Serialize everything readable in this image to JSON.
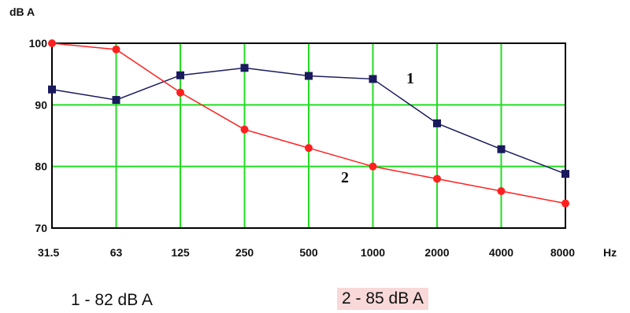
{
  "chart_data": {
    "type": "line",
    "ylabel": "dB A",
    "xlabel": "Hz",
    "categories": [
      "31.5",
      "63",
      "125",
      "250",
      "500",
      "1000",
      "2000",
      "4000",
      "8000"
    ],
    "ylim": [
      70,
      100
    ],
    "yticks": [
      "70",
      "80",
      "90",
      "100"
    ],
    "grid": true,
    "series": [
      {
        "name": "1",
        "color": "#1a1a5e",
        "marker": "square",
        "values": [
          92.5,
          90.8,
          94.8,
          96,
          94.7,
          94.2,
          87,
          82.8,
          78.8
        ]
      },
      {
        "name": "2",
        "color": "#ff2020",
        "marker": "circle",
        "values": [
          100,
          99,
          92,
          86,
          83,
          80,
          78,
          76,
          74
        ]
      }
    ],
    "legend": [
      "1 - 82 dB A",
      "2 - 85 dB A"
    ]
  }
}
